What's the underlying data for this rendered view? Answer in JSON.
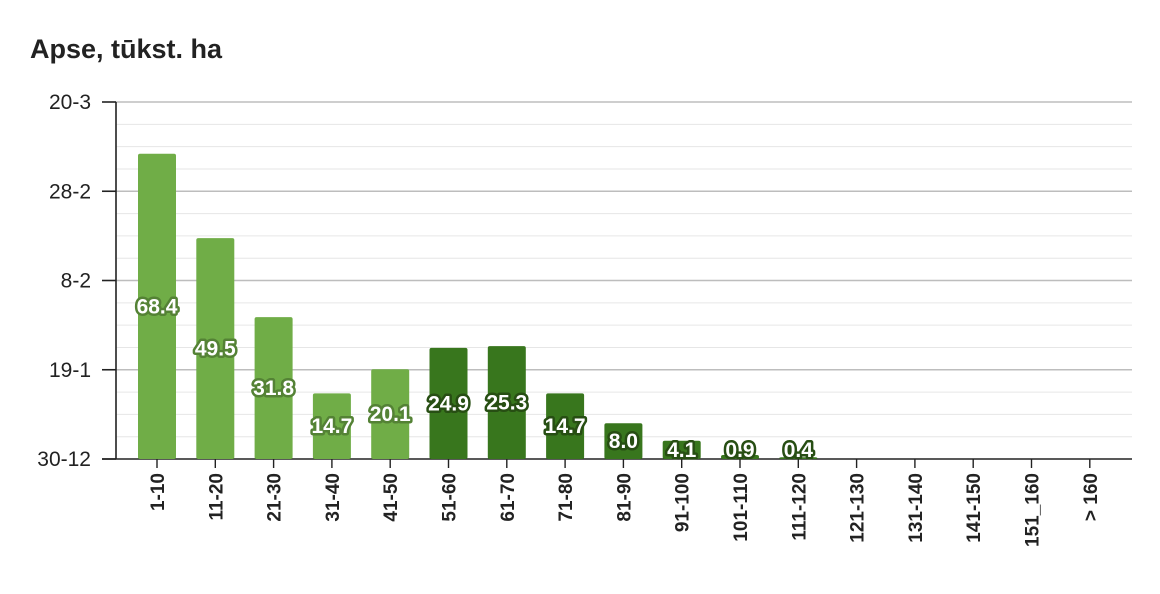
{
  "chart_data": {
    "type": "bar",
    "title": "Apse, tūkst. ha",
    "xlabel": "",
    "ylabel": "",
    "categories": [
      "1-10",
      "11-20",
      "21-30",
      "31-40",
      "41-50",
      "51-60",
      "61-70",
      "71-80",
      "81-90",
      "91-100",
      "101-110",
      "111-120",
      "121-130",
      "131-140",
      "141-150",
      "151_160",
      "> 160"
    ],
    "values": [
      68.4,
      49.5,
      31.8,
      14.7,
      20.1,
      24.9,
      25.3,
      14.7,
      8.0,
      4.1,
      0.9,
      0.4,
      null,
      null,
      null,
      null,
      null
    ],
    "value_labels": [
      "68.4",
      "49.5",
      "31.8",
      "14.7",
      "20.1",
      "24.9",
      "25.3",
      "14.7",
      "8.0",
      "4.1",
      "0.9",
      "0.4",
      "",
      "",
      "",
      "",
      ""
    ],
    "y_tick_labels": [
      "30-12",
      "19-1",
      "8-2",
      "28-2",
      "20-3"
    ],
    "ylim": [
      0,
      80
    ],
    "grid": true,
    "colors": {
      "light_green": "#70ad47",
      "dark_green": "#38761d",
      "light_outline": "#548235",
      "dark_outline": "#274e13"
    },
    "bar_color_groups": [
      "light",
      "light",
      "light",
      "light",
      "light",
      "dark",
      "dark",
      "dark",
      "dark",
      "dark",
      "dark",
      "dark",
      "dark",
      "dark",
      "dark",
      "dark",
      "dark"
    ]
  }
}
